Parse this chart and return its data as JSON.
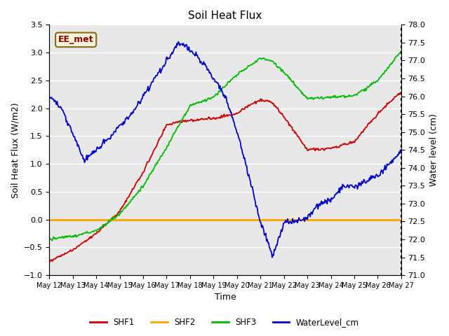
{
  "title": "Soil Heat Flux",
  "xlabel": "Time",
  "ylabel_left": "Soil Heat Flux (W/m2)",
  "ylabel_right": "Water level (cm)",
  "annotation": "EE_met",
  "ylim_left": [
    -1.0,
    3.5
  ],
  "ylim_right": [
    71.0,
    78.0
  ],
  "background_color": "#e8e8e8",
  "colors": {
    "SHF1": "#cc0000",
    "SHF2": "#ffaa00",
    "SHF3": "#00bb00",
    "WaterLevel_cm": "#0000cc"
  },
  "x_ticks": [
    "May 12",
    "May 13",
    "May 14",
    "May 15",
    "May 16",
    "May 17",
    "May 18",
    "May 19",
    "May 20",
    "May 21",
    "May 22",
    "May 23",
    "May 24",
    "May 25",
    "May 26",
    "May 27"
  ],
  "yticks_left": [
    -1.0,
    -0.5,
    0.0,
    0.5,
    1.0,
    1.5,
    2.0,
    2.5,
    3.0,
    3.5
  ],
  "yticks_right": [
    71.0,
    71.5,
    72.0,
    72.5,
    73.0,
    73.5,
    74.0,
    74.5,
    75.0,
    75.5,
    76.0,
    76.5,
    77.0,
    77.5,
    78.0
  ]
}
